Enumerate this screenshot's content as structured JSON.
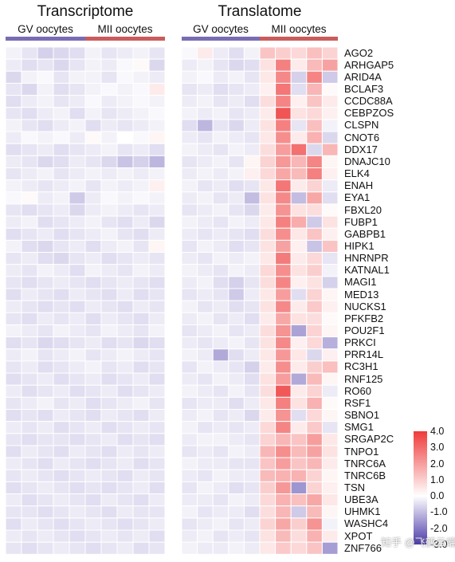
{
  "colors": {
    "gv_group": "#7a6cb3",
    "mii_group": "#c95c5c",
    "low": "#4a3aa8",
    "mid": "#ffffff",
    "high": "#ef3b3b"
  },
  "watermark": "知乎 @飞鹤云端",
  "chart_data": {
    "type": "heatmap",
    "color_scale": {
      "min": -3.0,
      "max": 4.0,
      "ticks": [
        "4.0",
        "3.0",
        "2.0",
        "1.0",
        "0.0",
        "-1.0",
        "-2.0",
        "-3.0"
      ]
    },
    "rows": [
      "AGO2",
      "ARHGAP5",
      "ARID4A",
      "BCLAF3",
      "CCDC88A",
      "CEBPZOS",
      "CLSPN",
      "CNOT6",
      "DDX17",
      "DNAJC10",
      "ELK4",
      "ENAH",
      "EYA1",
      "FBXL20",
      "FUBP1",
      "GABPB1",
      "HIPK1",
      "HNRNPR",
      "KATNAL1",
      "MAGI1",
      "MED13",
      "NUCKS1",
      "PFKFB2",
      "POU2F1",
      "PRKCI",
      "PRR14L",
      "RC3H1",
      "RNF125",
      "RO60",
      "RSF1",
      "SBNO1",
      "SMG1",
      "SRGAP2C",
      "TNPO1",
      "TNRC6A",
      "TNRC6B",
      "TSN",
      "UBE3A",
      "UHMK1",
      "WASHC4",
      "XPOT",
      "ZNF766"
    ],
    "panels": [
      {
        "title": "Transcriptome",
        "groups": [
          {
            "label": "GV oocytes",
            "n": 5
          },
          {
            "label": "MII oocytes",
            "n": 5
          }
        ],
        "values": [
          [
            -0.2,
            -0.4,
            -0.7,
            -0.6,
            -0.5,
            -0.2,
            -0.4,
            -0.3,
            -0.2,
            -0.4
          ],
          [
            -0.3,
            -0.5,
            -0.4,
            -0.6,
            -0.4,
            -0.2,
            -0.3,
            -0.1,
            0.1,
            -0.6
          ],
          [
            -0.6,
            -0.2,
            -0.1,
            -0.4,
            -0.2,
            -0.2,
            -0.4,
            -0.1,
            -0.2,
            -0.3
          ],
          [
            -0.4,
            -0.6,
            -0.2,
            -0.5,
            -0.4,
            -0.2,
            -0.1,
            -0.2,
            -0.1,
            0.4
          ],
          [
            -0.5,
            -0.3,
            -0.2,
            -0.4,
            -0.3,
            -0.1,
            -0.3,
            -0.2,
            -0.1,
            -0.2
          ],
          [
            -0.4,
            -0.5,
            -0.3,
            -0.2,
            -0.5,
            -0.2,
            -0.4,
            -0.3,
            -0.2,
            -0.1
          ],
          [
            -0.2,
            -0.4,
            -0.5,
            -0.3,
            -0.2,
            -0.5,
            -0.3,
            -0.4,
            -0.3,
            -0.2
          ],
          [
            -0.3,
            -0.1,
            -0.2,
            -0.1,
            -0.3,
            0.1,
            -0.2,
            0.0,
            -0.1,
            0.2
          ],
          [
            -0.5,
            -0.4,
            -0.3,
            -0.5,
            -0.4,
            -0.3,
            -0.2,
            -0.4,
            -0.3,
            -0.5
          ],
          [
            -0.3,
            -0.4,
            -0.6,
            -0.5,
            -0.3,
            -0.4,
            -0.6,
            -0.9,
            -0.7,
            -1.1
          ],
          [
            -0.4,
            -0.3,
            -0.2,
            -0.4,
            -0.3,
            -0.2,
            -0.3,
            -0.2,
            -0.3,
            -0.2
          ],
          [
            -0.2,
            -0.3,
            -0.4,
            -0.3,
            -0.2,
            -0.4,
            -0.2,
            -0.3,
            -0.2,
            0.3
          ],
          [
            -0.1,
            0.1,
            -0.3,
            -0.2,
            -0.8,
            -0.3,
            -0.1,
            -0.2,
            -0.1,
            -0.2
          ],
          [
            -0.4,
            -0.5,
            -0.4,
            -0.3,
            -0.6,
            -0.3,
            -0.2,
            -0.3,
            -0.4,
            -0.3
          ],
          [
            -0.3,
            -0.2,
            -0.5,
            -0.4,
            -0.3,
            -0.2,
            -0.4,
            -0.5,
            -0.3,
            -0.6
          ],
          [
            -0.5,
            -0.4,
            -0.3,
            -0.5,
            -0.4,
            -0.3,
            -0.2,
            -0.4,
            -0.5,
            -0.3
          ],
          [
            -0.2,
            -0.5,
            -0.6,
            -0.4,
            -0.3,
            -0.5,
            -0.3,
            -0.2,
            -0.4,
            0.2
          ],
          [
            -0.4,
            -0.3,
            -0.5,
            -0.6,
            -0.4,
            -0.3,
            -0.5,
            -0.4,
            -0.3,
            -0.4
          ],
          [
            -0.3,
            -0.4,
            -0.2,
            -0.3,
            -0.5,
            -0.2,
            -0.3,
            -0.4,
            -0.2,
            -0.3
          ],
          [
            -0.4,
            -0.5,
            -0.4,
            -0.3,
            -0.4,
            -0.5,
            -0.4,
            -0.3,
            -0.4,
            -0.5
          ],
          [
            -0.5,
            -0.3,
            -0.4,
            -0.5,
            -0.3,
            -0.4,
            -0.5,
            -0.3,
            -0.5,
            -0.4
          ],
          [
            -0.3,
            -0.4,
            -0.5,
            -0.4,
            -0.5,
            -0.3,
            -0.4,
            -0.5,
            -0.3,
            -0.4
          ],
          [
            -0.4,
            -0.5,
            -0.3,
            -0.4,
            -0.3,
            -0.5,
            -0.3,
            -0.4,
            -0.5,
            -0.3
          ],
          [
            -0.2,
            -0.3,
            -0.4,
            -0.2,
            -0.3,
            -0.4,
            -0.2,
            -0.3,
            -0.4,
            -0.2
          ],
          [
            -0.5,
            -0.4,
            -0.6,
            -0.5,
            -0.4,
            -0.3,
            -0.5,
            -0.4,
            -0.6,
            -0.5
          ],
          [
            -0.3,
            -0.2,
            -0.4,
            -0.3,
            -0.2,
            -0.4,
            -0.3,
            -0.2,
            -0.3,
            -0.4
          ],
          [
            -0.4,
            -0.3,
            -0.5,
            -0.4,
            -0.3,
            -0.2,
            -0.4,
            -0.3,
            -0.5,
            -0.4
          ],
          [
            -0.5,
            -0.4,
            -0.3,
            -0.5,
            -0.4,
            -0.3,
            -0.5,
            -0.4,
            -0.3,
            -0.5
          ],
          [
            -0.3,
            -0.5,
            -0.4,
            -0.3,
            -0.5,
            -0.4,
            -0.3,
            -0.5,
            -0.4,
            -0.3
          ],
          [
            -0.4,
            -0.3,
            -0.2,
            -0.4,
            -0.3,
            -0.5,
            -0.4,
            -0.3,
            -0.2,
            -0.4
          ],
          [
            -0.5,
            -0.4,
            -0.5,
            -0.3,
            -0.4,
            -0.5,
            -0.3,
            -0.4,
            -0.5,
            -0.3
          ],
          [
            -0.3,
            -0.4,
            -0.3,
            -0.5,
            -0.4,
            -0.3,
            -0.5,
            -0.4,
            -0.3,
            -0.4
          ],
          [
            -0.4,
            -0.5,
            -0.4,
            -0.4,
            -0.5,
            -0.4,
            -0.3,
            -0.5,
            -0.4,
            -0.5
          ],
          [
            -0.5,
            -0.3,
            -0.4,
            -0.5,
            -0.3,
            -0.4,
            -0.5,
            -0.3,
            -0.4,
            -0.3
          ],
          [
            -0.3,
            -0.4,
            -0.5,
            -0.3,
            -0.4,
            -0.5,
            -0.4,
            -0.3,
            -0.5,
            -0.4
          ],
          [
            -0.4,
            -0.3,
            -0.4,
            -0.5,
            -0.4,
            -0.3,
            -0.4,
            -0.5,
            -0.3,
            -0.4
          ],
          [
            -0.5,
            -0.4,
            -0.3,
            -0.4,
            -0.5,
            -0.4,
            -0.5,
            -0.4,
            -0.3,
            -0.5
          ],
          [
            -0.3,
            -0.5,
            -0.4,
            -0.3,
            -0.4,
            -0.5,
            -0.3,
            -0.4,
            -0.5,
            -0.3
          ],
          [
            -0.4,
            -0.4,
            -0.5,
            -0.4,
            -0.3,
            -0.4,
            -0.5,
            -0.3,
            -0.4,
            -0.4
          ],
          [
            -0.5,
            -0.3,
            -0.4,
            -0.5,
            -0.4,
            -0.3,
            -0.4,
            -0.5,
            -0.4,
            -0.3
          ],
          [
            -0.3,
            -0.4,
            -0.3,
            -0.4,
            -0.5,
            -0.4,
            -0.3,
            -0.4,
            -0.3,
            -0.5
          ],
          [
            -0.4,
            -0.5,
            -0.4,
            -0.3,
            -0.4,
            -0.5,
            -0.4,
            -0.3,
            -0.5,
            -0.4
          ]
        ]
      },
      {
        "title": "Translatome",
        "groups": [
          {
            "label": "GV oocytes",
            "n": 5
          },
          {
            "label": "MII oocytes",
            "n": 5
          }
        ],
        "values": [
          [
            -0.1,
            0.4,
            -0.3,
            -0.5,
            -0.2,
            1.2,
            1.0,
            0.8,
            1.3,
            0.9
          ],
          [
            -0.3,
            -0.2,
            -0.4,
            -0.6,
            -0.5,
            0.6,
            2.6,
            0.4,
            1.4,
            1.9
          ],
          [
            -0.2,
            -0.1,
            -0.3,
            -0.2,
            -0.4,
            0.5,
            2.4,
            -0.7,
            2.5,
            -0.8
          ],
          [
            -0.4,
            -0.3,
            -0.5,
            -0.4,
            -0.3,
            0.3,
            2.8,
            -0.5,
            1.5,
            0.1
          ],
          [
            -0.3,
            -0.2,
            -0.4,
            -0.3,
            -0.5,
            0.7,
            2.5,
            0.3,
            1.2,
            0.4
          ],
          [
            -0.2,
            -0.3,
            -0.2,
            -0.4,
            -0.3,
            0.4,
            3.5,
            0.6,
            0.8,
            0.3
          ],
          [
            -0.5,
            -1.1,
            -0.4,
            -0.6,
            -0.3,
            0.6,
            2.6,
            -0.4,
            1.3,
            -0.2
          ],
          [
            -0.3,
            -0.4,
            -0.2,
            -0.3,
            -0.4,
            0.5,
            2.3,
            0.4,
            1.6,
            -0.6
          ],
          [
            -0.2,
            -0.3,
            -0.4,
            -0.2,
            -0.3,
            0.7,
            2.0,
            2.9,
            -0.6,
            1.5
          ],
          [
            -0.4,
            -0.3,
            -0.2,
            -0.4,
            0.2,
            0.9,
            2.1,
            1.5,
            2.5,
            0.2
          ],
          [
            -0.3,
            -0.2,
            -0.3,
            -0.2,
            0.3,
            0.8,
            1.8,
            1.4,
            2.6,
            0.3
          ],
          [
            -0.2,
            -0.4,
            -0.3,
            -0.5,
            -0.4,
            0.5,
            2.8,
            0.4,
            0.9,
            -0.3
          ],
          [
            -0.3,
            -0.2,
            -0.4,
            -0.3,
            -1.0,
            0.6,
            2.4,
            -1.0,
            1.8,
            -0.5
          ],
          [
            -0.4,
            -0.3,
            -0.2,
            -0.4,
            -0.6,
            0.4,
            2.2,
            0.6,
            0.7,
            0.1
          ],
          [
            -0.2,
            -0.3,
            -0.4,
            -0.2,
            -0.3,
            0.5,
            2.6,
            1.7,
            -0.8,
            0.6
          ],
          [
            -0.3,
            -0.4,
            -0.3,
            -0.4,
            -0.5,
            0.7,
            2.3,
            0.5,
            1.2,
            0.3
          ],
          [
            -0.4,
            -0.2,
            -0.3,
            -0.5,
            -0.4,
            0.6,
            1.9,
            0.3,
            -0.9,
            1.2
          ],
          [
            -0.3,
            -0.4,
            -0.2,
            -0.3,
            -0.2,
            0.5,
            2.7,
            0.4,
            0.8,
            -0.4
          ],
          [
            -0.2,
            -0.3,
            -0.4,
            -0.2,
            -0.3,
            0.8,
            2.3,
            0.6,
            1.0,
            -0.2
          ],
          [
            -0.3,
            -0.2,
            -0.5,
            -0.7,
            -0.4,
            0.7,
            2.5,
            0.3,
            0.6,
            -0.7
          ],
          [
            -0.4,
            -0.3,
            -0.4,
            -0.8,
            -0.3,
            0.5,
            2.0,
            -0.5,
            0.9,
            0.2
          ],
          [
            -0.2,
            -0.4,
            -0.3,
            -0.5,
            -0.4,
            0.6,
            2.4,
            0.4,
            1.1,
            0.3
          ],
          [
            -0.3,
            -0.2,
            -0.4,
            -0.3,
            -0.5,
            0.4,
            1.8,
            0.6,
            0.7,
            0.1
          ],
          [
            -0.4,
            -0.3,
            -0.2,
            -0.4,
            -0.3,
            0.7,
            2.2,
            -1.4,
            0.9,
            0.2
          ],
          [
            -0.3,
            -0.4,
            -0.3,
            -0.2,
            -0.4,
            0.6,
            2.4,
            0.3,
            0.8,
            -1.2
          ],
          [
            -0.2,
            -0.3,
            -1.3,
            -0.5,
            -0.3,
            0.5,
            2.1,
            0.5,
            -0.6,
            0.3
          ],
          [
            -0.4,
            -0.2,
            -0.3,
            -0.4,
            -0.7,
            0.4,
            2.3,
            0.4,
            1.0,
            1.3
          ],
          [
            -0.3,
            -0.4,
            -0.2,
            -0.3,
            -0.5,
            0.6,
            2.0,
            -1.3,
            1.4,
            0.2
          ],
          [
            -0.2,
            -0.3,
            -0.4,
            -0.2,
            -0.4,
            0.7,
            3.4,
            0.4,
            0.9,
            -0.3
          ],
          [
            -0.4,
            -0.3,
            -0.3,
            -0.5,
            -0.3,
            0.5,
            2.6,
            0.6,
            1.6,
            0.1
          ],
          [
            -0.3,
            -0.2,
            -0.4,
            -0.3,
            -0.6,
            0.4,
            2.2,
            -0.5,
            0.8,
            0.2
          ],
          [
            -0.2,
            -0.4,
            -0.3,
            -0.4,
            -0.3,
            0.8,
            2.5,
            0.4,
            1.1,
            -0.4
          ],
          [
            -0.3,
            -0.2,
            -0.2,
            -0.3,
            -0.4,
            0.9,
            1.5,
            1.2,
            2.0,
            0.5
          ],
          [
            -0.4,
            -0.3,
            -0.4,
            -0.2,
            -0.3,
            1.5,
            2.3,
            1.4,
            1.9,
            0.6
          ],
          [
            -0.2,
            -0.3,
            -0.3,
            -0.4,
            -0.4,
            1.2,
            2.0,
            1.2,
            1.5,
            0.4
          ],
          [
            -0.3,
            -0.4,
            -0.2,
            -0.3,
            -0.3,
            1.4,
            1.6,
            1.6,
            0.9,
            0.2
          ],
          [
            -0.4,
            -0.2,
            -0.3,
            -0.5,
            -0.4,
            1.0,
            2.1,
            -1.6,
            0.9,
            0.3
          ],
          [
            -0.3,
            -0.3,
            -0.4,
            -0.2,
            -0.3,
            0.8,
            1.6,
            1.3,
            1.8,
            0.5
          ],
          [
            -0.2,
            -0.4,
            -0.3,
            -0.3,
            -0.5,
            0.7,
            1.5,
            -0.8,
            1.4,
            0.2
          ],
          [
            -0.4,
            -0.3,
            -0.2,
            -0.4,
            -0.3,
            0.9,
            1.8,
            1.0,
            2.2,
            -0.2
          ],
          [
            -0.3,
            -0.2,
            -0.4,
            -0.3,
            -0.4,
            0.6,
            1.4,
            0.7,
            1.6,
            0.4
          ],
          [
            -0.2,
            -0.3,
            -0.3,
            -0.2,
            -0.3,
            0.5,
            1.1,
            0.8,
            1.2,
            -1.5
          ]
        ]
      }
    ]
  }
}
